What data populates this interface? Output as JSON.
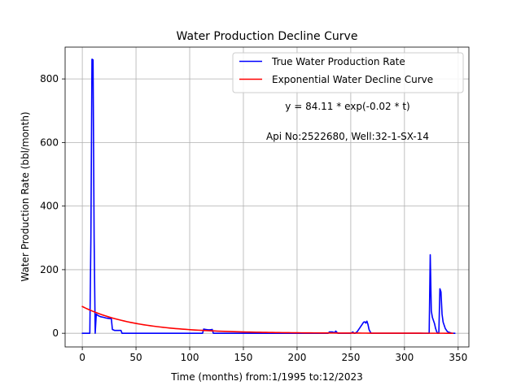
{
  "chart_data": {
    "type": "line",
    "title": "Water Production Decline Curve",
    "xlabel": "Time (months) from:1/1995 to:12/2023",
    "ylabel": "Water Production Rate (bbl/month)",
    "xlim": [
      -16,
      360
    ],
    "ylim": [
      -43,
      900
    ],
    "xticks": [
      0,
      50,
      100,
      150,
      200,
      250,
      300,
      350
    ],
    "yticks": [
      0,
      200,
      400,
      600,
      800
    ],
    "grid": true,
    "legend_position": "top-right",
    "annotations": [
      "y = 84.11 * exp(-0.02 * t)",
      "Api No:2522680, Well:32-1-SX-14"
    ],
    "series": [
      {
        "name": "True Water Production Rate",
        "color": "#0000ff",
        "x": [
          0,
          7,
          8,
          9,
          10,
          11,
          12,
          13,
          15,
          17,
          20,
          22,
          24,
          26,
          27,
          28,
          30,
          32,
          34,
          36,
          37,
          40,
          60,
          80,
          100,
          112,
          113,
          115,
          117,
          119,
          121,
          122,
          125,
          150,
          200,
          229,
          230,
          233,
          235,
          236,
          237,
          238,
          250,
          252,
          253,
          254,
          256,
          258,
          260,
          262,
          263,
          264,
          265,
          266,
          267,
          268,
          269,
          270,
          300,
          322,
          323,
          324,
          325,
          326,
          328,
          329,
          330,
          331,
          332,
          333,
          334,
          335,
          336,
          338,
          340,
          344,
          347
        ],
        "y": [
          0,
          0,
          300,
          862,
          860,
          300,
          0,
          60,
          55,
          52,
          50,
          48,
          47,
          46,
          48,
          12,
          9,
          9,
          9,
          9,
          0,
          0,
          0,
          0,
          0,
          0,
          13,
          12,
          11,
          11,
          12,
          0,
          0,
          0,
          0,
          0,
          4,
          4,
          2,
          7,
          3,
          0,
          0,
          4,
          0,
          0,
          5,
          15,
          25,
          35,
          36,
          32,
          38,
          28,
          12,
          5,
          0,
          0,
          0,
          0,
          0,
          247,
          70,
          50,
          30,
          15,
          5,
          0,
          0,
          140,
          130,
          60,
          35,
          15,
          5,
          0,
          0
        ]
      },
      {
        "name": "Exponential Water Decline Curve",
        "color": "#ff0000",
        "model": {
          "a": 84.11,
          "b": 0.02,
          "x_min": 0,
          "x_max": 347,
          "step": 3
        }
      }
    ]
  }
}
